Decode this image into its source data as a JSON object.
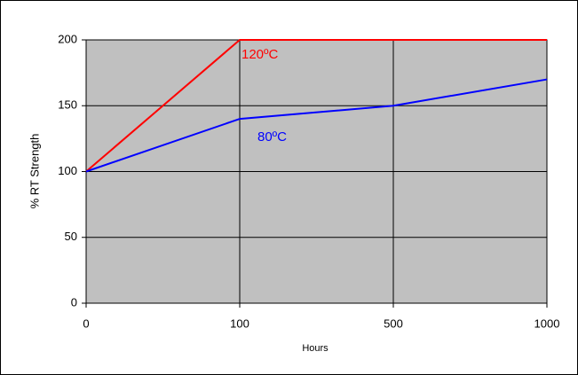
{
  "chart_data": {
    "type": "line",
    "x_label": "Hours",
    "y_label": "% RT Strength",
    "categories": [
      "0",
      "100",
      "500",
      "1000"
    ],
    "series": [
      {
        "name": "120ºC",
        "color": "#ff0000",
        "values": [
          100,
          200,
          200,
          200
        ]
      },
      {
        "name": "80ºC",
        "color": "#0000ff",
        "values": [
          100,
          140,
          150,
          170
        ]
      }
    ],
    "ylim": [
      0,
      200
    ],
    "yticks": [
      0,
      50,
      100,
      150,
      200
    ],
    "grid": true
  }
}
